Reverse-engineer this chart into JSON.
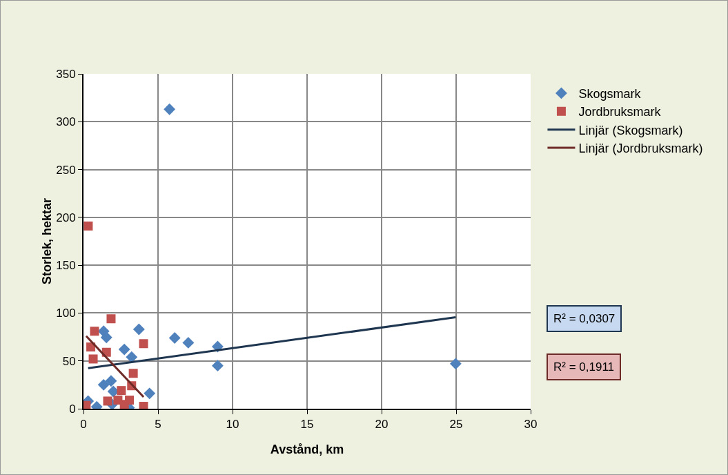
{
  "chart_data": {
    "type": "scatter",
    "xlabel": "Avstånd, km",
    "ylabel": "Storlek, hektar",
    "xlim": [
      0,
      30
    ],
    "xticks": [
      0,
      5,
      10,
      15,
      20,
      25,
      30
    ],
    "ylim": [
      0,
      350
    ],
    "yticks": [
      0,
      50,
      100,
      150,
      200,
      250,
      300,
      350
    ],
    "grid": true,
    "legend": "right",
    "series": [
      {
        "name": "Skogsmark",
        "marker": "diamond",
        "color": "#4f81bd",
        "x": [
          1.35,
          1.54,
          3.72,
          2.74,
          3.23,
          6.12,
          7.03,
          9.0,
          9.0,
          1.35,
          1.85,
          4.43,
          2.0,
          0.31,
          0.89,
          1.92,
          3.05,
          5.77,
          24.97
        ],
        "values": [
          81,
          74.5,
          83,
          62,
          54,
          74,
          69,
          65,
          45,
          25,
          29,
          16,
          18,
          8,
          2,
          4.5,
          1,
          313,
          47
        ]
      },
      {
        "name": "Jordbruksmark",
        "marker": "square",
        "color": "#c0504d",
        "x": [
          1.85,
          0.74,
          4.03,
          0.49,
          1.54,
          0.65,
          3.34,
          3.23,
          2.54,
          1.62,
          2.31,
          3.08,
          2.74,
          0.18,
          4.03,
          0.32
        ],
        "values": [
          94,
          81,
          68,
          64.5,
          59,
          52,
          37,
          24,
          19,
          8,
          9,
          9,
          4.5,
          3.5,
          2.5,
          191
        ]
      },
      {
        "name": "Linjär (Skogsmark)",
        "type": "line",
        "marker": "none",
        "line_style": "solid",
        "color": "#1f3650",
        "x": [
          0.31,
          24.97
        ],
        "values": [
          42.4,
          95.6
        ]
      },
      {
        "name": "Linjär (Jordbruksmark)",
        "type": "line",
        "marker": "none",
        "line_style": "solid",
        "color": "#6e2a26",
        "x": [
          0.18,
          4.03
        ],
        "values": [
          76,
          12.2
        ]
      }
    ],
    "annotations": [
      "R² = 0,0307",
      "R² = 0,1911"
    ]
  }
}
